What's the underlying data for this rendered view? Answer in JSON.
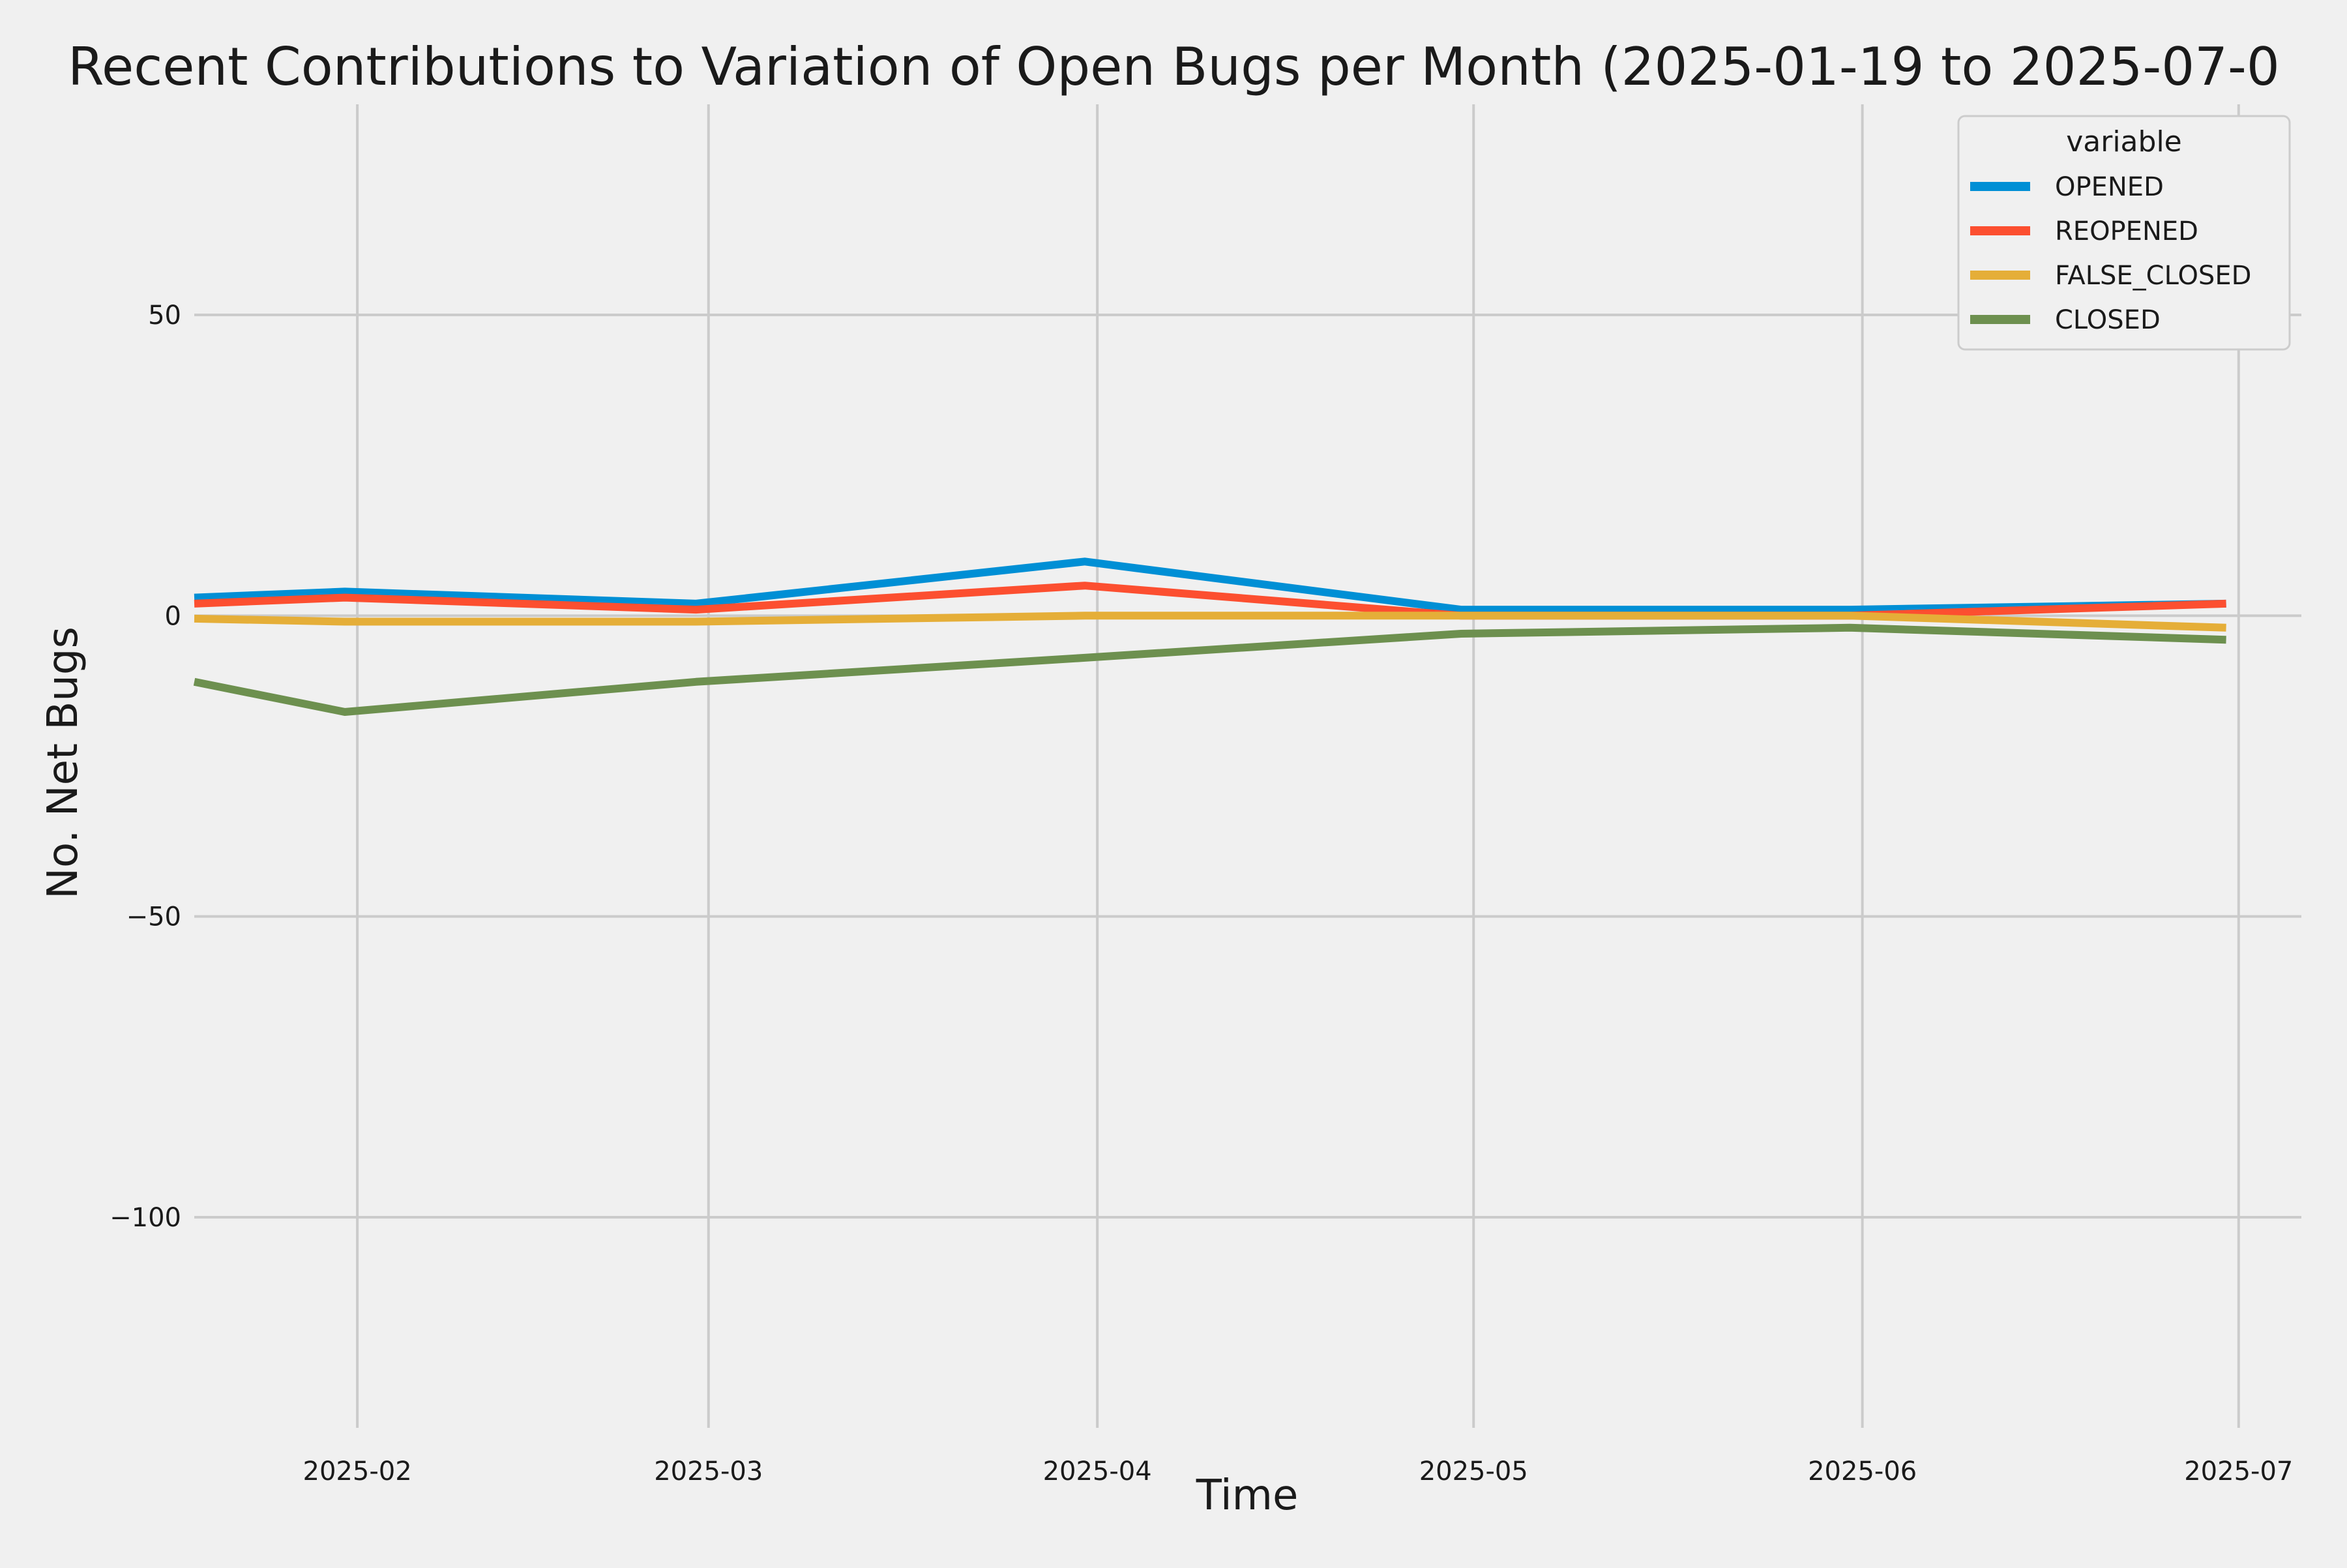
{
  "chart_data": {
    "type": "line",
    "title": "Recent Contributions to Variation of Open Bugs per Month (2025-01-19 to 2025-07-0",
    "xlabel": "Time",
    "ylabel": "No. Net Bugs",
    "x": [
      "2025-01-19",
      "2025-01-31",
      "2025-02-28",
      "2025-03-31",
      "2025-04-30",
      "2025-05-31",
      "2025-06-30"
    ],
    "x_ticks": [
      "2025-02",
      "2025-03",
      "2025-04",
      "2025-05",
      "2025-06",
      "2025-07"
    ],
    "x_tick_dates": [
      "2025-02-01",
      "2025-03-01",
      "2025-04-01",
      "2025-05-01",
      "2025-06-01",
      "2025-07-01"
    ],
    "xlim": [
      "2025-01-19",
      "2025-07-06"
    ],
    "y_ticks": [
      50,
      0,
      -50,
      -100
    ],
    "y_tick_labels": [
      "50",
      "0",
      "−50",
      "−100"
    ],
    "ylim": [
      -135,
      85
    ],
    "grid": true,
    "legend": {
      "title": "variable",
      "position": "top-right"
    },
    "series": [
      {
        "name": "OPENED",
        "color": "#008fd5",
        "values": [
          3,
          4,
          2,
          9,
          1,
          1,
          2
        ]
      },
      {
        "name": "REOPENED",
        "color": "#fc4f30",
        "values": [
          2,
          3,
          1,
          5,
          0,
          0,
          2
        ]
      },
      {
        "name": "FALSE_CLOSED",
        "color": "#e5ae38",
        "values": [
          -0.5,
          -1,
          -1,
          0,
          0,
          0,
          -2
        ]
      },
      {
        "name": "CLOSED",
        "color": "#6d904f",
        "values": [
          -11,
          -16,
          -11,
          -7,
          -3,
          -2,
          -4
        ]
      }
    ]
  }
}
